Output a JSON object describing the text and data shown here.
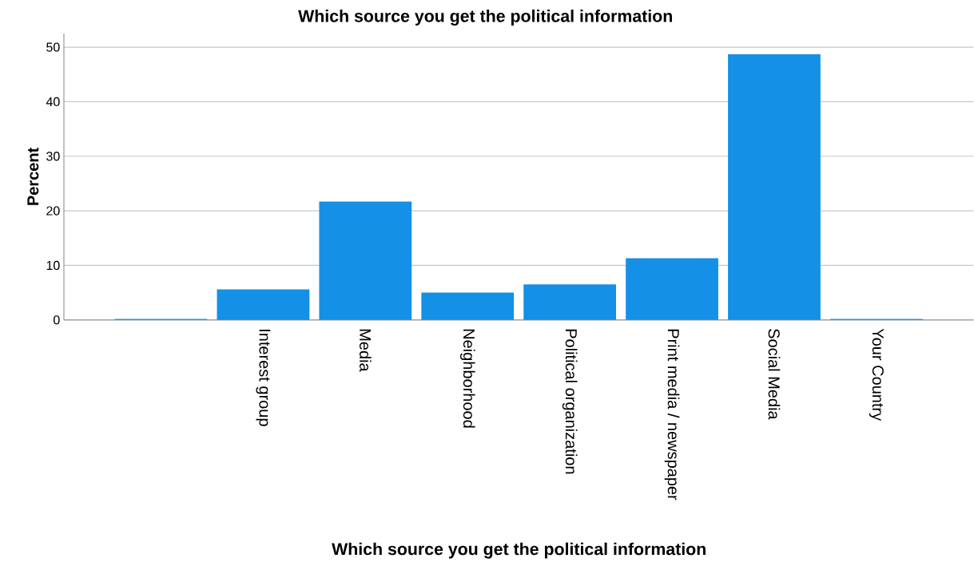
{
  "chart_data": {
    "type": "bar",
    "title": "Which source you get the political information",
    "xlabel": "Which source you get the political information",
    "ylabel": "Percent",
    "categories": [
      null,
      "Interest group",
      "Media",
      "Neighborhood",
      "Political organization",
      "Print media / newspaper",
      "Social Media",
      "Your Country"
    ],
    "values": [
      0.2,
      5.6,
      21.7,
      5.0,
      6.5,
      11.3,
      48.7,
      0.2
    ],
    "color": "#1490e6",
    "ylim": [
      0,
      52.5
    ],
    "yticks": [
      0,
      10,
      20,
      30,
      40,
      50
    ],
    "grid": "y"
  }
}
